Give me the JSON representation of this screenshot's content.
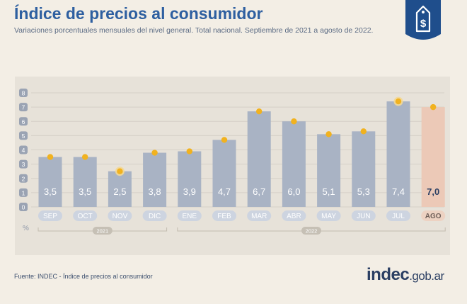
{
  "header": {
    "title": "Índice de precios al consumidor",
    "subtitle": "Variaciones porcentuales mensuales del nivel general. Total nacional. Septiembre de 2021 a agosto de 2022."
  },
  "footer": {
    "source": "Fuente: INDEC - Índice de precios al consumidor",
    "brand_name": "indec",
    "brand_suffix": ".gob.ar"
  },
  "badge": {
    "icon": "price-tag-dollar-icon",
    "color": "#1f4e8c"
  },
  "chart_data": {
    "type": "bar",
    "categories": [
      "SEP",
      "OCT",
      "NOV",
      "DIC",
      "ENE",
      "FEB",
      "MAR",
      "ABR",
      "MAY",
      "JUN",
      "JUL",
      "AGO"
    ],
    "values": [
      3.5,
      3.5,
      2.5,
      3.8,
      3.9,
      4.7,
      6.7,
      6.0,
      5.1,
      5.3,
      7.4,
      7.0
    ],
    "value_labels": [
      "3,5",
      "3,5",
      "2,5",
      "3,8",
      "3,9",
      "4,7",
      "6,7",
      "6,0",
      "5,1",
      "5,3",
      "7,4",
      "7,0"
    ],
    "highlighted_months": [
      "NOV",
      "JUL"
    ],
    "ylim": [
      0,
      8
    ],
    "yticks": [
      "0",
      "1",
      "2",
      "3",
      "4",
      "5",
      "6",
      "7",
      "8"
    ],
    "unit_label": "%",
    "year_groups": [
      {
        "label": "2021",
        "categories": [
          "SEP",
          "OCT",
          "NOV",
          "DIC"
        ]
      },
      {
        "label": "2022",
        "categories": [
          "ENE",
          "FEB",
          "MAR",
          "ABR",
          "MAY",
          "JUN",
          "JUL",
          "AGO"
        ]
      }
    ],
    "grid": true,
    "colors": {
      "bar": "#a9b3c4",
      "bar_current": "#ecc9b7",
      "marker": "#f1b21f",
      "label_bg": "#cdd4e0",
      "label_bg_current": "#edd2c2"
    }
  }
}
